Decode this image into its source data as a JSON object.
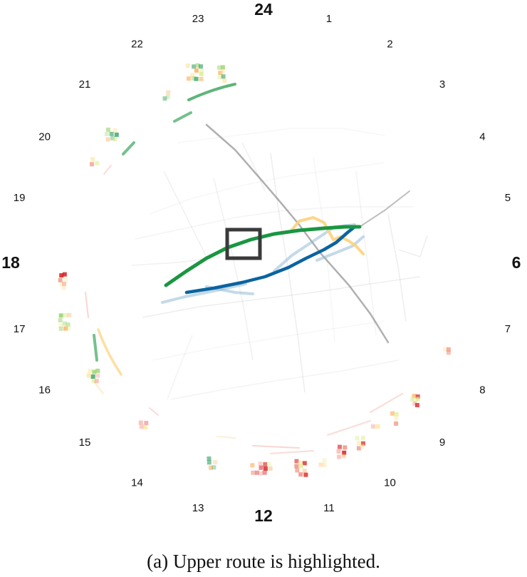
{
  "caption": "(a)  Upper route is highlighted.",
  "clock": {
    "labels": [
      "1",
      "2",
      "3",
      "4",
      "5",
      "6",
      "7",
      "8",
      "9",
      "10",
      "11",
      "12",
      "13",
      "14",
      "15",
      "16",
      "17",
      "18",
      "19",
      "20",
      "21",
      "22",
      "23",
      "24"
    ],
    "major_labels": [
      "6",
      "12",
      "18",
      "24"
    ]
  },
  "colors": {
    "upper_route": "#1a9641",
    "lower_route": "#0a64a0",
    "alternative_route": "#fdd27a",
    "alternative_lower": "#8ab6d2",
    "background_roads": "#9a9a9a",
    "dark_road": "#6f6f6f",
    "highlight_box": "#3a3a3a",
    "cell_palette": [
      "#d7191c",
      "#f08a7a",
      "#fdae61",
      "#fee08b",
      "#d9ef8b",
      "#91cf60",
      "#1a9850"
    ]
  }
}
